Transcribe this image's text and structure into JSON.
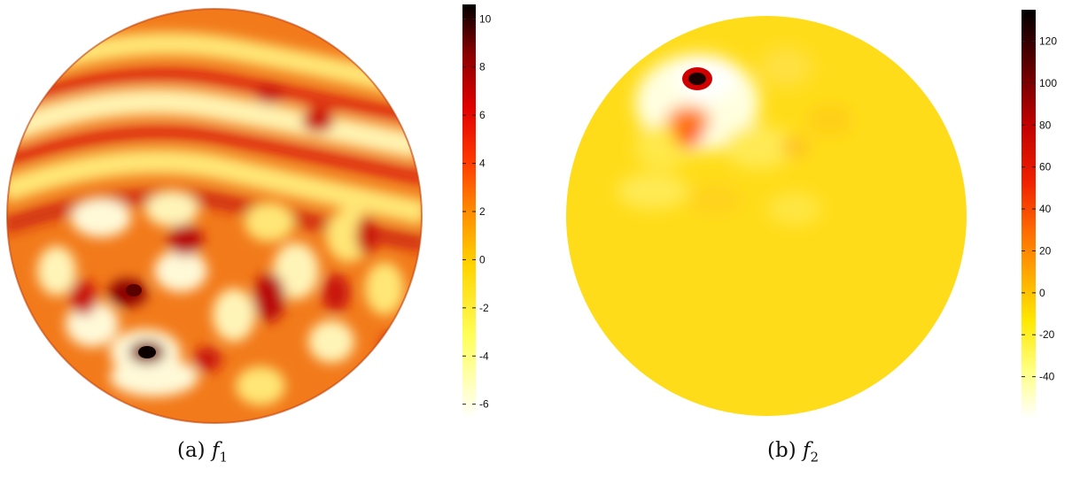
{
  "panels": [
    {
      "caption_label": "(a)",
      "caption_fn": "f",
      "caption_sub": "1",
      "colorbar": {
        "min": -6.6,
        "max": 10.6,
        "ticks": [
          "10",
          "8",
          "6",
          "4",
          "2",
          "0",
          "-2",
          "-4",
          "-6"
        ],
        "tick_values": [
          10,
          8,
          6,
          4,
          2,
          0,
          -2,
          -4,
          -6
        ]
      }
    },
    {
      "caption_label": "(b)",
      "caption_fn": "f",
      "caption_sub": "2",
      "colorbar": {
        "min": -60,
        "max": 135,
        "ticks": [
          "120",
          "100",
          "80",
          "60",
          "40",
          "20",
          "0",
          "-20",
          "-40"
        ],
        "tick_values": [
          120,
          100,
          80,
          60,
          40,
          20,
          0,
          -20,
          -40
        ]
      }
    }
  ],
  "colormap": "hot-reversed"
}
